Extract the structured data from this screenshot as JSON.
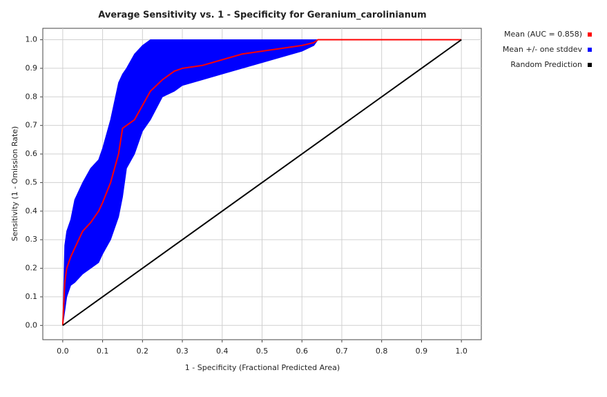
{
  "chart_data": {
    "type": "line",
    "title": "Average Sensitivity vs. 1 - Specificity for Geranium_carolinianum",
    "x_label": "1 - Specificity (Fractional Predicted Area)",
    "y_label": "Sensitivity (1 - Omission Rate)",
    "xlim": [
      -0.05,
      1.05
    ],
    "ylim": [
      -0.05,
      1.04
    ],
    "xticks": [
      {
        "value": 0,
        "label": "0.0"
      },
      0.1,
      0.2,
      0.3,
      0.4,
      0.5,
      0.6,
      0.7,
      0.8,
      0.9,
      {
        "value": 1,
        "label": "1.0"
      }
    ],
    "yticks": [
      {
        "value": 0,
        "label": "0.0"
      },
      0.1,
      0.2,
      0.3,
      0.4,
      0.5,
      0.6,
      0.7,
      0.8,
      0.9,
      {
        "value": 1,
        "label": "1.0"
      }
    ],
    "grid": true,
    "legend": "right",
    "series": [
      {
        "name": "Mean +/- one stddev",
        "color": "#0000ff",
        "style": "band",
        "x": [
          0,
          0.005,
          0.01,
          0.02,
          0.03,
          0.05,
          0.07,
          0.09,
          0.1,
          0.12,
          0.14,
          0.15,
          0.16,
          0.18,
          0.2,
          0.22,
          0.25,
          0.28,
          0.3,
          0.35,
          0.4,
          0.45,
          0.5,
          0.55,
          0.6,
          0.63,
          0.64,
          0.7,
          1.0
        ],
        "values": [
          0,
          0.28,
          0.33,
          0.37,
          0.44,
          0.5,
          0.55,
          0.58,
          0.62,
          0.72,
          0.85,
          0.88,
          0.9,
          0.95,
          0.98,
          1.0,
          1.0,
          1.0,
          1.0,
          1.0,
          1.0,
          1.0,
          1.0,
          1.0,
          1.0,
          1.0,
          1.0,
          1.0,
          1.0
        ],
        "lower": [
          0,
          0.05,
          0.1,
          0.14,
          0.15,
          0.18,
          0.2,
          0.22,
          0.25,
          0.3,
          0.38,
          0.45,
          0.55,
          0.6,
          0.68,
          0.72,
          0.8,
          0.82,
          0.84,
          0.86,
          0.88,
          0.9,
          0.92,
          0.94,
          0.96,
          0.98,
          1.0,
          1.0,
          1.0
        ]
      },
      {
        "name": "Mean (AUC = 0.858)",
        "color": "#ff0000",
        "style": "line",
        "x": [
          0,
          0.005,
          0.01,
          0.02,
          0.03,
          0.05,
          0.07,
          0.09,
          0.1,
          0.12,
          0.14,
          0.15,
          0.16,
          0.18,
          0.2,
          0.22,
          0.25,
          0.28,
          0.3,
          0.35,
          0.4,
          0.45,
          0.5,
          0.55,
          0.6,
          0.63,
          0.64,
          0.7,
          1.0
        ],
        "values": [
          0,
          0.15,
          0.2,
          0.24,
          0.27,
          0.33,
          0.36,
          0.4,
          0.43,
          0.5,
          0.6,
          0.69,
          0.7,
          0.72,
          0.77,
          0.82,
          0.86,
          0.89,
          0.9,
          0.91,
          0.93,
          0.95,
          0.96,
          0.97,
          0.98,
          0.99,
          1.0,
          1.0,
          1.0
        ]
      },
      {
        "name": "Random Prediction",
        "color": "#000000",
        "style": "line",
        "x": [
          0,
          1
        ],
        "values": [
          0,
          1
        ]
      }
    ],
    "legend_order": [
      1,
      0,
      2
    ]
  }
}
